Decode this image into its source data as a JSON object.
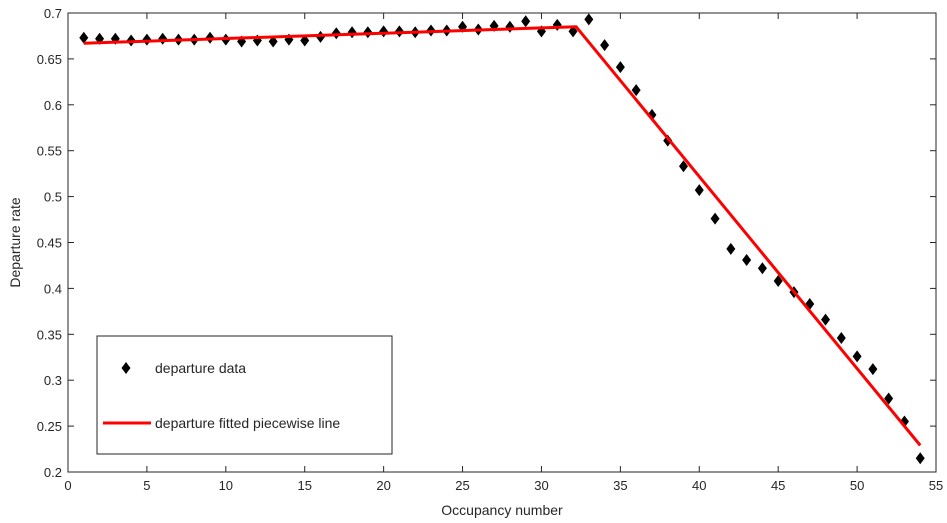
{
  "chart_data": {
    "type": "scatter",
    "xlabel": "Occupancy number",
    "ylabel": "Departure rate",
    "xlim": [
      0,
      55
    ],
    "ylim": [
      0.2,
      0.7
    ],
    "xticks": [
      0,
      5,
      10,
      15,
      20,
      25,
      30,
      35,
      40,
      45,
      50,
      55
    ],
    "yticks": [
      0.2,
      0.25,
      0.3,
      0.35,
      0.4,
      0.45,
      0.5,
      0.55,
      0.6,
      0.65,
      0.7
    ],
    "xtick_labels": [
      "0",
      "5",
      "10",
      "15",
      "20",
      "25",
      "30",
      "35",
      "40",
      "45",
      "50",
      "55"
    ],
    "ytick_labels": [
      "0.2",
      "0.25",
      "0.3",
      "0.35",
      "0.4",
      "0.45",
      "0.5",
      "0.55",
      "0.6",
      "0.65",
      "0.7"
    ],
    "grid": false,
    "legend_position": "bottom-left",
    "series": [
      {
        "name": "departure data",
        "kind": "scatter",
        "marker": "diamond",
        "color": "#000000",
        "x": [
          1,
          2,
          3,
          4,
          5,
          6,
          7,
          8,
          9,
          10,
          11,
          12,
          13,
          14,
          15,
          16,
          17,
          18,
          19,
          20,
          21,
          22,
          23,
          24,
          25,
          26,
          27,
          28,
          29,
          30,
          31,
          32,
          33,
          34,
          35,
          36,
          37,
          38,
          39,
          40,
          41,
          42,
          43,
          44,
          45,
          46,
          47,
          48,
          49,
          50,
          51,
          52,
          53,
          54
        ],
        "y": [
          0.673,
          0.672,
          0.672,
          0.67,
          0.671,
          0.672,
          0.671,
          0.671,
          0.673,
          0.671,
          0.669,
          0.67,
          0.669,
          0.671,
          0.67,
          0.674,
          0.678,
          0.679,
          0.679,
          0.68,
          0.68,
          0.679,
          0.681,
          0.681,
          0.685,
          0.682,
          0.686,
          0.685,
          0.691,
          0.68,
          0.687,
          0.68,
          0.693,
          0.665,
          0.641,
          0.616,
          0.589,
          0.561,
          0.533,
          0.507,
          0.476,
          0.443,
          0.431,
          0.422,
          0.408,
          0.396,
          0.383,
          0.366,
          0.346,
          0.326,
          0.312,
          0.28,
          0.255,
          0.215
        ]
      },
      {
        "name": "departure fitted piecewise line",
        "kind": "line",
        "color": "#ff0000",
        "x": [
          1,
          32.2,
          54
        ],
        "y": [
          0.667,
          0.685,
          0.229
        ]
      }
    ]
  }
}
